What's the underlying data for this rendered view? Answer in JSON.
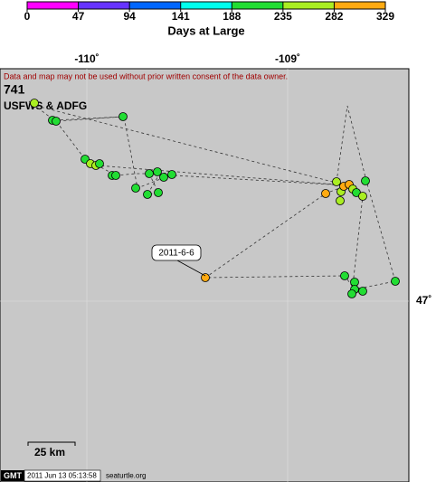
{
  "colorbar": {
    "label": "Days at Large",
    "ticks": [
      0,
      47,
      94,
      141,
      188,
      235,
      282,
      329
    ],
    "colors": [
      "#ff00ff",
      "#6633ff",
      "#0066ff",
      "#00ffee",
      "#22dd33",
      "#aaee22",
      "#ffaa11"
    ]
  },
  "map": {
    "x_labels": [
      "-110˚",
      "-109˚"
    ],
    "y_labels": [
      "47˚"
    ],
    "notice": "Data and map may not be used without prior written consent of the data owner.",
    "id": "741",
    "owner": "USFWS & ADFG",
    "callout": "2011-6-6",
    "scale": "25 km"
  },
  "footer": {
    "logo": "GMT",
    "timestamp": "2011 Jun 13 05:13:58",
    "site": "seaturtle.org"
  }
}
